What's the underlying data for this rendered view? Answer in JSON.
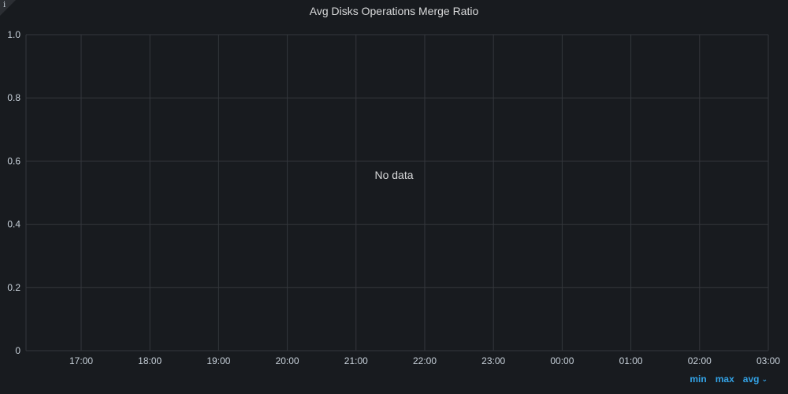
{
  "panel": {
    "title": "Avg Disks Operations Merge Ratio",
    "info_icon": "info-icon",
    "no_data_text": "No data"
  },
  "legend": {
    "min_label": "min",
    "max_label": "max",
    "avg_label": "avg",
    "sort_icon": "chevron-down-icon"
  },
  "colors": {
    "background": "#181b1f",
    "grid": "#34373c",
    "tick_text": "#c7d0d9",
    "accent": "#33a2e5"
  },
  "chart_data": {
    "type": "line",
    "title": "Avg Disks Operations Merge Ratio",
    "series": [],
    "ylim": [
      0,
      1.0
    ],
    "y_ticks": [
      "0",
      "0.2",
      "0.4",
      "0.6",
      "0.8",
      "1.0"
    ],
    "x_ticks": [
      "17:00",
      "18:00",
      "19:00",
      "20:00",
      "21:00",
      "22:00",
      "23:00",
      "00:00",
      "01:00",
      "02:00",
      "03:00"
    ],
    "grid": true,
    "legend_placement": "bottom-right"
  }
}
